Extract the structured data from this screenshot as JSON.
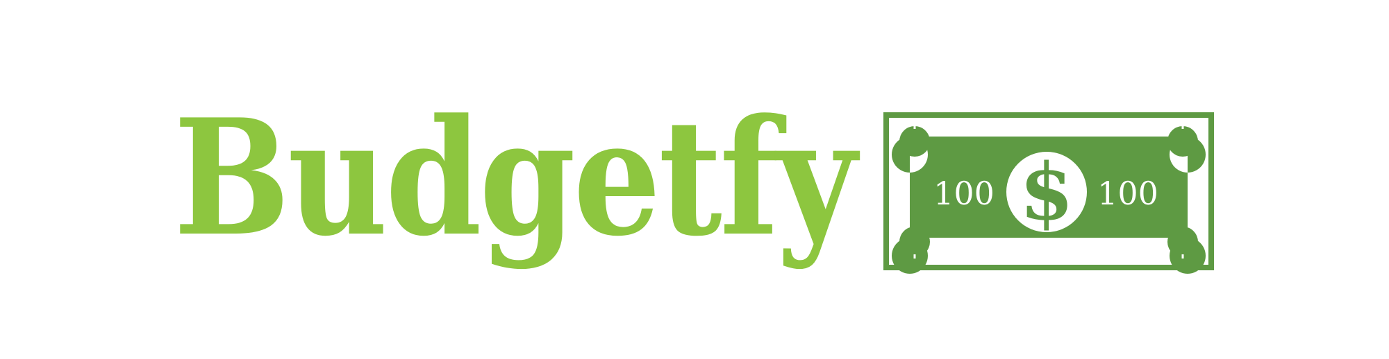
{
  "brand": {
    "name": "Budgetfy"
  },
  "banknote": {
    "denomination_left": "100",
    "denomination_right": "100",
    "currency_symbol": "$"
  },
  "colors": {
    "wordmark": "#8dc63f",
    "banknote": "#5e9a43",
    "background": "#ffffff"
  }
}
